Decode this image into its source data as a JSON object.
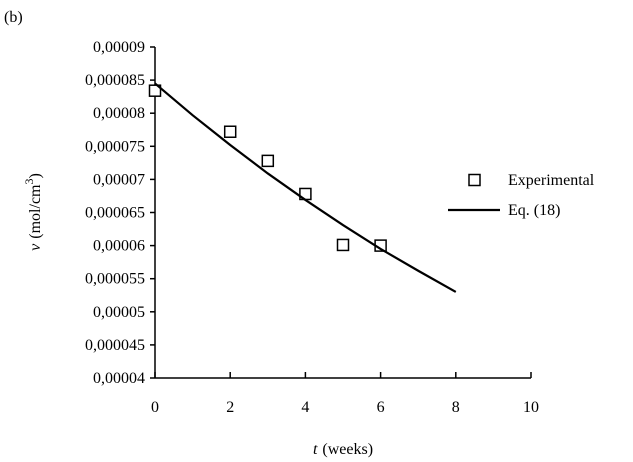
{
  "chart_data": {
    "type": "scatter-line",
    "panel_label": "(b)",
    "xlabel": [
      "t",
      "(weeks)"
    ],
    "ylabel": [
      "v",
      "(mol/cm",
      "3",
      ")"
    ],
    "xlim": [
      0,
      10
    ],
    "xticks": [
      0,
      2,
      4,
      6,
      8,
      10
    ],
    "ylim": [
      4e-05,
      9e-05
    ],
    "yticks": [
      {
        "value": 4e-05,
        "label": "0,00004"
      },
      {
        "value": 4.5e-05,
        "label": "0,000045"
      },
      {
        "value": 5e-05,
        "label": "0,00005"
      },
      {
        "value": 5.5e-05,
        "label": "0,000055"
      },
      {
        "value": 6e-05,
        "label": "0,00006"
      },
      {
        "value": 6.5e-05,
        "label": "0,000065"
      },
      {
        "value": 7e-05,
        "label": "0,00007"
      },
      {
        "value": 7.5e-05,
        "label": "0,000075"
      },
      {
        "value": 8e-05,
        "label": "0,00008"
      },
      {
        "value": 8.5e-05,
        "label": "0,000085"
      },
      {
        "value": 9e-05,
        "label": "0,00009"
      }
    ],
    "legend": "right",
    "series": [
      {
        "name": "Experimental",
        "kind": "marker",
        "color": "#000000",
        "x": [
          0,
          2,
          3,
          4,
          5,
          6
        ],
        "values": [
          8.34e-05,
          7.72e-05,
          7.28e-05,
          6.78e-05,
          6.01e-05,
          6e-05
        ]
      },
      {
        "name": "Eq. (18)",
        "kind": "line",
        "color": "#000000",
        "x": [
          0,
          1,
          2,
          3,
          4,
          5,
          6,
          7,
          8
        ],
        "values": [
          8.45e-05,
          7.97e-05,
          7.52e-05,
          7.09e-05,
          6.69e-05,
          6.31e-05,
          5.95e-05,
          5.62e-05,
          5.3e-05
        ]
      }
    ]
  }
}
